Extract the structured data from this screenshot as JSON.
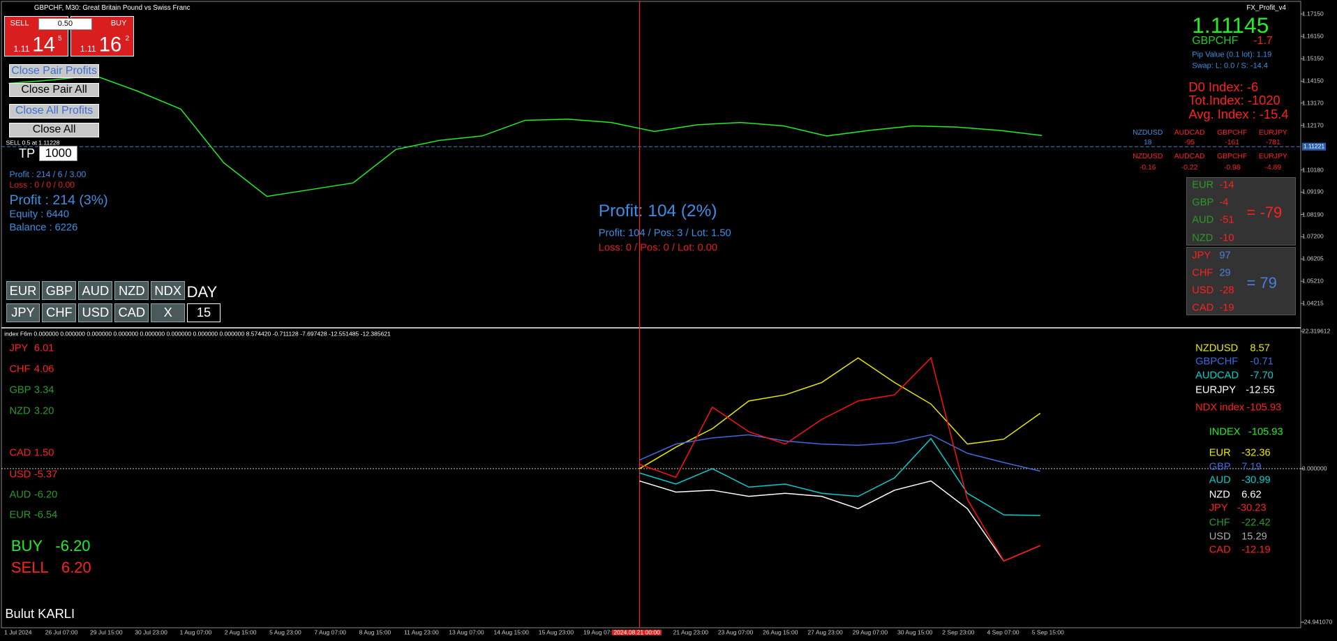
{
  "header": {
    "symbol": "GBPCHF, M30:  Great Britain Pound vs Swiss Franc",
    "indicator": "FX_Profit_v4"
  },
  "trade_panel": {
    "sell": "SELL",
    "buy": "BUY",
    "lot": "0.50",
    "sell_price": {
      "big": "1.11",
      "main": "14",
      "small": "5"
    },
    "buy_price": {
      "big": "1.11",
      "main": "16",
      "small": "2"
    }
  },
  "buttons": [
    "Close Pair Profits",
    "Close Pair All",
    "Close All Profits",
    "Close All"
  ],
  "order": {
    "label": "SELL 0.5 at 1.11228",
    "tp_label": "TP",
    "tp_value": "1000"
  },
  "left_stats": [
    "Profit : 214 / 6 / 3.00",
    "Loss : 0 / 0 / 0.00",
    "Profit : 214 (3%)",
    "Equity   : 6440",
    "Balance : 6226"
  ],
  "center_stats": [
    "Profit: 104 (2%)",
    "Profit: 104 / Pos: 3 / Lot: 1.50",
    "Loss: 0 / Pos: 0 / Lot: 0.00"
  ],
  "currency_buttons": {
    "row1": [
      "EUR",
      "GBP",
      "AUD",
      "NZD",
      "NDX"
    ],
    "row2": [
      "JPY",
      "CHF",
      "USD",
      "CAD",
      "X"
    ],
    "period_label": "DAY",
    "period_value": "15"
  },
  "symbol_info": {
    "price": "1.11145",
    "symbol": "GBPCHF",
    "change": "-1.7",
    "pip_value": "Pip Value (0.1 lot): 1.19",
    "swap": "Swap: L: 0.0 / S: -14.4",
    "d0_index": "D0 Index: -6",
    "tot_index": "Tot.Index: -1020",
    "avg_index": "Avg. Index : -15.4"
  },
  "pairs_table": {
    "rows": [
      [
        "NZDUSD",
        "AUDCAD",
        "GBPCHF",
        "EURJPY"
      ],
      [
        "18",
        "-95",
        "-161",
        "-781"
      ],
      [
        "NZDUSD",
        "AUDCAD",
        "GBPCHF",
        "EURJPY"
      ],
      [
        "-0.16",
        "-0.22",
        "-0.98",
        "-4.89"
      ]
    ]
  },
  "strength_boxes": [
    {
      "rows": [
        [
          "EUR",
          "-14"
        ],
        [
          "GBP",
          "-4"
        ],
        [
          "AUD",
          "-51"
        ],
        [
          "NZD",
          "-10"
        ]
      ],
      "total": "= -79"
    },
    {
      "rows": [
        [
          "JPY",
          "97"
        ],
        [
          "CHF",
          "29"
        ],
        [
          "USD",
          "-28"
        ],
        [
          "CAD",
          "-19"
        ]
      ],
      "total": "= 79"
    }
  ],
  "main_chart": {
    "type": "line",
    "color": "#22ee22",
    "values": [
      1.1405,
      1.142,
      1.144,
      1.137,
      1.129,
      1.105,
      1.09,
      1.093,
      1.096,
      1.111,
      1.115,
      1.117,
      1.124,
      1.1245,
      1.123,
      1.119,
      1.122,
      1.123,
      1.1215,
      1.117,
      1.1195,
      1.1215,
      1.121,
      1.1195,
      1.1172
    ],
    "ylim": [
      1.0319,
      1.1765
    ],
    "yticks": [
      {
        "value": 1.1715,
        "label": "1.17150"
      },
      {
        "value": 1.1615,
        "label": "1.16150"
      },
      {
        "value": 1.1515,
        "label": "1.15150"
      },
      {
        "value": 1.1415,
        "label": "1.14150"
      },
      {
        "value": 1.1317,
        "label": "1.13170"
      },
      {
        "value": 1.1217,
        "label": "1.12170"
      },
      {
        "value": 1.1018,
        "label": "1.10180"
      },
      {
        "value": 1.0919,
        "label": "1.09190"
      },
      {
        "value": 1.0819,
        "label": "1.08190"
      },
      {
        "value": 1.072,
        "label": "1.07200"
      },
      {
        "value": 1.06205,
        "label": "1.06205"
      },
      {
        "value": 1.0521,
        "label": "1.05210"
      },
      {
        "value": 1.04215,
        "label": "1.04215"
      }
    ],
    "price_tag": {
      "value": 1.11221,
      "label": "1.11221"
    }
  },
  "index_panel": {
    "type": "line",
    "title": "index F6m 0.000000 0.000000 0.000000 0.000000 0.000000 0.000000 0.000000 0.000000 8.574420 -0.711128 -7.697428 -12.551485 -12.385621",
    "ylim": [
      -24.94107,
      22.319612
    ],
    "yticks": [
      {
        "value": 22.319612,
        "label": "22.319612"
      },
      {
        "value": 0,
        "label": "0.000000"
      },
      {
        "value": -24.94107,
        "label": "-24.941070"
      }
    ],
    "series": [
      {
        "color": "#e8e800",
        "values": [
          0,
          3.5,
          6.5,
          11,
          12,
          14,
          18,
          14,
          10.5,
          4,
          4.8,
          9
        ]
      },
      {
        "color": "#4169e1",
        "values": [
          1.4,
          4,
          5,
          5.5,
          4.5,
          4,
          3.8,
          4.2,
          5.5,
          2.5,
          1,
          -0.4
        ]
      },
      {
        "color": "#00d0d0",
        "values": [
          -0.7,
          -2.5,
          0,
          -3,
          -2.5,
          -4,
          -4.5,
          -1.5,
          4.9,
          -4,
          -7.5,
          -7.6
        ]
      },
      {
        "color": "#ffffff",
        "values": [
          -2,
          -3.8,
          -3.5,
          -4.5,
          -4,
          -4.5,
          -6.5,
          -3.5,
          -2,
          -6.5,
          -15,
          -12.5
        ]
      },
      {
        "color": "#ff1010",
        "values": [
          0.7,
          -1.4,
          10,
          6,
          4,
          8,
          11,
          12,
          18,
          -5,
          -15,
          -12.5
        ]
      }
    ],
    "left_list": [
      [
        "JPY",
        "6.01"
      ],
      [
        "CHF",
        "4.06"
      ],
      [
        "GBP",
        "3.34"
      ],
      [
        "NZD",
        "3.20"
      ],
      [
        "CAD",
        "1.50"
      ],
      [
        "USD",
        "-5.37"
      ],
      [
        "AUD",
        "-6.20"
      ],
      [
        "EUR",
        "-6.54"
      ]
    ],
    "buy": [
      "BUY",
      "-6.20"
    ],
    "sell": [
      "SELL",
      "6.20"
    ],
    "right_list": [
      [
        "NZDUSD",
        "8.57"
      ],
      [
        "GBPCHF",
        "-0.71"
      ],
      [
        "AUDCAD",
        "-7.70"
      ],
      [
        "EURJPY",
        "-12.55"
      ],
      [
        "NDX index",
        "-105.93"
      ],
      [
        "INDEX",
        "-105.93"
      ],
      [
        "EUR",
        "-32.36"
      ],
      [
        "GBP",
        "7.19"
      ],
      [
        "AUD",
        "-30.99"
      ],
      [
        "NZD",
        "6.62"
      ],
      [
        "JPY",
        "-30.23"
      ],
      [
        "CHF",
        "-22.42"
      ],
      [
        "USD",
        "15.29"
      ],
      [
        "CAD",
        "-12.19"
      ]
    ]
  },
  "author": "Bulut KARLI",
  "time_axis": [
    "1 Jul 2024",
    "26 Jul 07:00",
    "29 Jul 15:00",
    "30 Jul 23:00",
    "1 Aug 07:00",
    "2 Aug 15:00",
    "5 Aug 23:00",
    "7 Aug 07:00",
    "8 Aug 15:00",
    "11 Aug 23:00",
    "13 Aug 07:00",
    "14 Aug 15:00",
    "15 Aug 23:00",
    "19 Aug 07:00",
    "2024.08.21 00:00",
    "21 Aug 23:00",
    "23 Aug 07:00",
    "26 Aug 15:00",
    "27 Aug 23:00",
    "29 Aug 07:00",
    "30 Aug 15:00",
    "2 Sep 23:00",
    "4 Sep 07:00",
    "5 Sep 15:00"
  ]
}
